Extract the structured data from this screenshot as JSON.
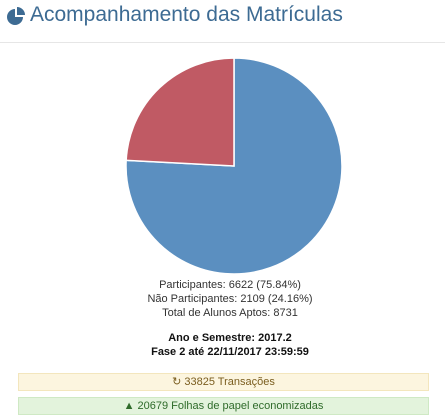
{
  "header": {
    "title": "Acompanhamento das Matrículas",
    "icon": "pie-chart-icon",
    "color": "#3d6b93"
  },
  "chart_data": {
    "type": "pie",
    "categories": [
      "Participantes",
      "Não Participantes"
    ],
    "values": [
      6622,
      2109
    ],
    "colors": [
      "#5b8fc0",
      "#c05a64"
    ]
  },
  "stats": {
    "participantes": "Participantes: 6622 (75.84%)",
    "nao_participantes": "Não Participantes: 2109 (24.16%)",
    "total": "Total de Alunos Aptos: 8731"
  },
  "info": {
    "ano_semestre": "Ano e Semestre: 2017.2",
    "fase": "Fase 2 até 22/11/2017 23:59:59"
  },
  "banners": {
    "transacoes": {
      "icon": "refresh-icon",
      "text": "33825 Transações"
    },
    "folhas": {
      "icon": "tree-icon",
      "text": "20679 Folhas de papel economizadas"
    }
  }
}
